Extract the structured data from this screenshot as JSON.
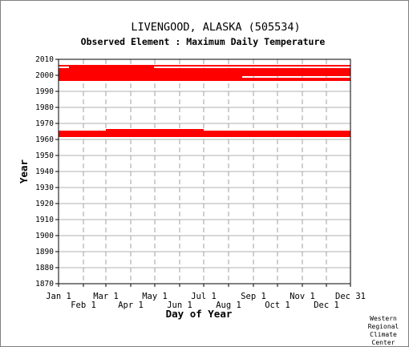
{
  "chart_data": {
    "type": "scatter",
    "title": "LIVENGOOD, ALASKA   (505534)",
    "subtitle": "Observed Element : Maximum Daily Temperature",
    "xlabel": "Day of Year",
    "ylabel": "Year",
    "xlim": [
      1,
      365
    ],
    "ylim": [
      1870,
      2010
    ],
    "x_ticks": [
      {
        "label": "Jan 1",
        "day": 1,
        "row": "top"
      },
      {
        "label": "Feb 1",
        "day": 32,
        "row": "bottom"
      },
      {
        "label": "Mar 1",
        "day": 60,
        "row": "top"
      },
      {
        "label": "Apr 1",
        "day": 91,
        "row": "bottom"
      },
      {
        "label": "May 1",
        "day": 121,
        "row": "top"
      },
      {
        "label": "Jun 1",
        "day": 152,
        "row": "bottom"
      },
      {
        "label": "Jul 1",
        "day": 182,
        "row": "top"
      },
      {
        "label": "Aug 1",
        "day": 213,
        "row": "bottom"
      },
      {
        "label": "Sep 1",
        "day": 244,
        "row": "top"
      },
      {
        "label": "Oct 1",
        "day": 274,
        "row": "bottom"
      },
      {
        "label": "Nov 1",
        "day": 305,
        "row": "top"
      },
      {
        "label": "Dec 1",
        "day": 335,
        "row": "bottom"
      },
      {
        "label": "Dec 31",
        "day": 365,
        "row": "top"
      }
    ],
    "y_ticks": [
      "1870",
      "1880",
      "1890",
      "1900",
      "1910",
      "1920",
      "1930",
      "1940",
      "1950",
      "1960",
      "1970",
      "1980",
      "1990",
      "2000",
      "2010"
    ],
    "grid": true,
    "marker_color": "#ff0000",
    "series": [
      {
        "values": [
          {
            "x_start": 1,
            "x_end": 365,
            "year": 1962
          },
          {
            "x_start": 1,
            "x_end": 365,
            "year": 1963
          },
          {
            "x_start": 1,
            "x_end": 60,
            "year": 1964
          },
          {
            "x_start": 60,
            "x_end": 365,
            "year": 1964
          },
          {
            "x_start": 1,
            "x_end": 365,
            "year": 1965
          },
          {
            "x_start": 60,
            "x_end": 182,
            "year": 1966
          },
          {
            "x_start": 1,
            "x_end": 365,
            "year": 1997
          },
          {
            "x_start": 1,
            "x_end": 365,
            "year": 1998
          },
          {
            "x_start": 1,
            "x_end": 230,
            "year": 1999
          },
          {
            "x_start": 1,
            "x_end": 365,
            "year": 2000
          },
          {
            "x_start": 1,
            "x_end": 365,
            "year": 2001
          },
          {
            "x_start": 1,
            "x_end": 365,
            "year": 2002
          },
          {
            "x_start": 1,
            "x_end": 365,
            "year": 2003
          },
          {
            "x_start": 1,
            "x_end": 365,
            "year": 2004
          },
          {
            "x_start": 14,
            "x_end": 120,
            "year": 2005
          },
          {
            "x_start": 1,
            "x_end": 365,
            "year": 2006
          }
        ]
      }
    ]
  },
  "credit": [
    "Western",
    "Regional",
    "Climate",
    "Center"
  ]
}
